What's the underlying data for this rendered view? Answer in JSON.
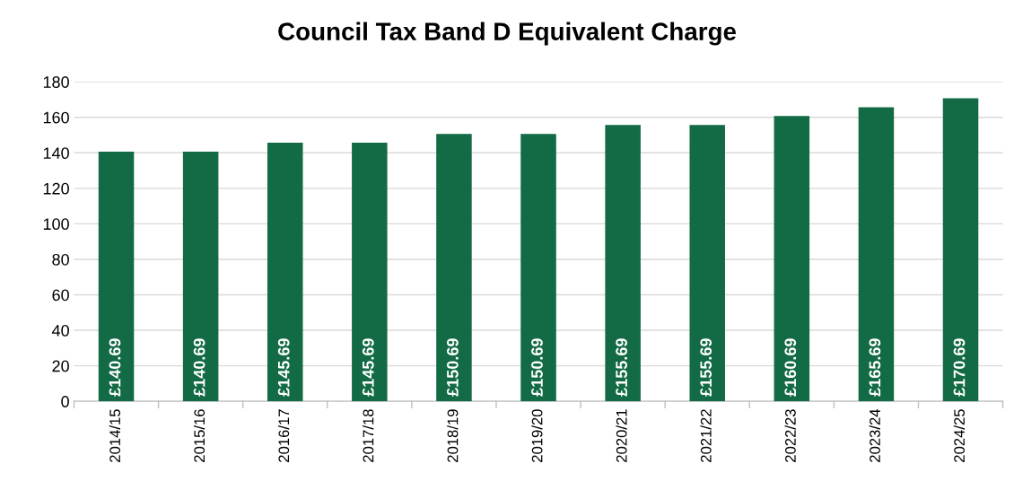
{
  "chart_data": {
    "type": "bar",
    "title": "Council Tax Band D Equivalent Charge",
    "categories": [
      "2014/15",
      "2015/16",
      "2016/17",
      "2017/18",
      "2018/19",
      "2019/20",
      "2020/21",
      "2021/22",
      "2022/23",
      "2023/24",
      "2024/25"
    ],
    "values": [
      140.69,
      140.69,
      145.69,
      145.69,
      150.69,
      150.69,
      155.69,
      155.69,
      160.69,
      165.69,
      170.69
    ],
    "value_labels": [
      "£140.69",
      "£140.69",
      "£145.69",
      "£145.69",
      "£150.69",
      "£150.69",
      "£155.69",
      "£155.69",
      "£160.69",
      "£165.69",
      "£170.69"
    ],
    "color": "#136b45",
    "ylim": [
      0,
      180
    ],
    "yticks": [
      0,
      20,
      40,
      60,
      80,
      100,
      120,
      140,
      160,
      180
    ],
    "grid": "y",
    "legend": false
  }
}
